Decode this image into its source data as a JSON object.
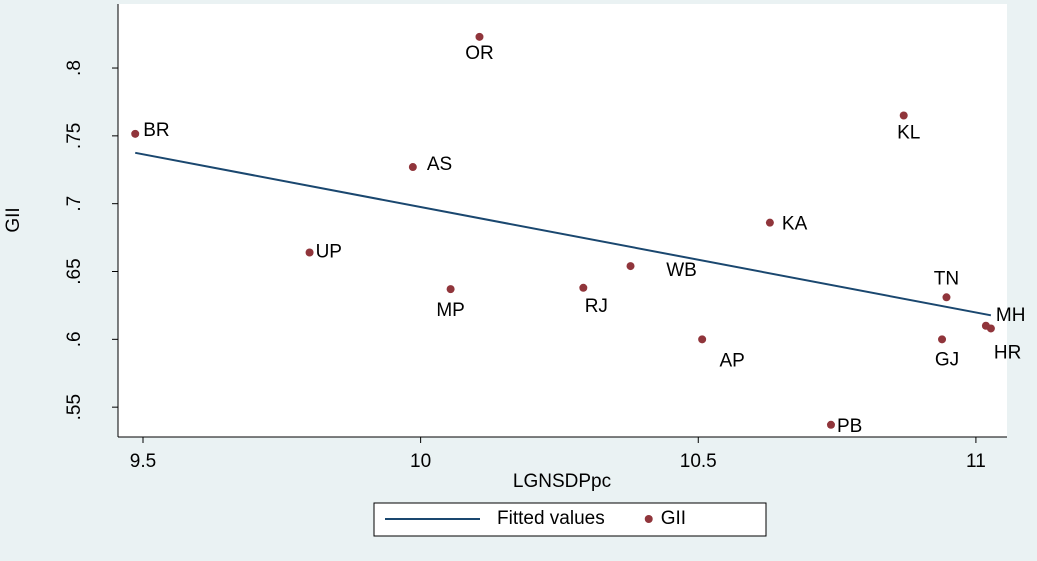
{
  "chart_data": {
    "type": "scatter",
    "x_label": "LGNSDPpc",
    "y_label": "GII",
    "xlim": [
      9.455,
      11.056
    ],
    "ylim": [
      0.528,
      0.8472
    ],
    "xticks": [
      9.5,
      10,
      10.5,
      11
    ],
    "yticks": [
      {
        "value": 0.55,
        "label": ".55"
      },
      {
        "value": 0.6,
        "label": ".6"
      },
      {
        "value": 0.65,
        "label": ".65"
      },
      {
        "value": 0.7,
        "label": ".7"
      },
      {
        "value": 0.75,
        "label": ".75"
      },
      {
        "value": 0.8,
        "label": ".8"
      }
    ],
    "series": [
      {
        "name": "Fitted values",
        "type": "line",
        "color": "#1a476f",
        "x": [
          9.486,
          11.027
        ],
        "values": [
          0.7375,
          0.6177
        ]
      },
      {
        "name": "GII",
        "type": "scatter",
        "color": "#90353b",
        "point_labels": [
          "BR",
          "OR",
          "AS",
          "UP",
          "MP",
          "RJ",
          "WB",
          "AP",
          "KA",
          "KL",
          "TN",
          "GJ",
          "MH",
          "HR",
          "PB"
        ],
        "x": [
          9.486,
          10.106,
          9.986,
          9.8,
          10.054,
          10.293,
          10.378,
          10.507,
          10.629,
          10.87,
          10.947,
          10.939,
          11.018,
          11.027,
          10.739
        ],
        "values": [
          0.7515,
          0.823,
          0.727,
          0.664,
          0.637,
          0.638,
          0.654,
          0.6,
          0.686,
          0.765,
          0.631,
          0.6,
          0.61,
          0.608,
          0.537
        ]
      }
    ]
  }
}
